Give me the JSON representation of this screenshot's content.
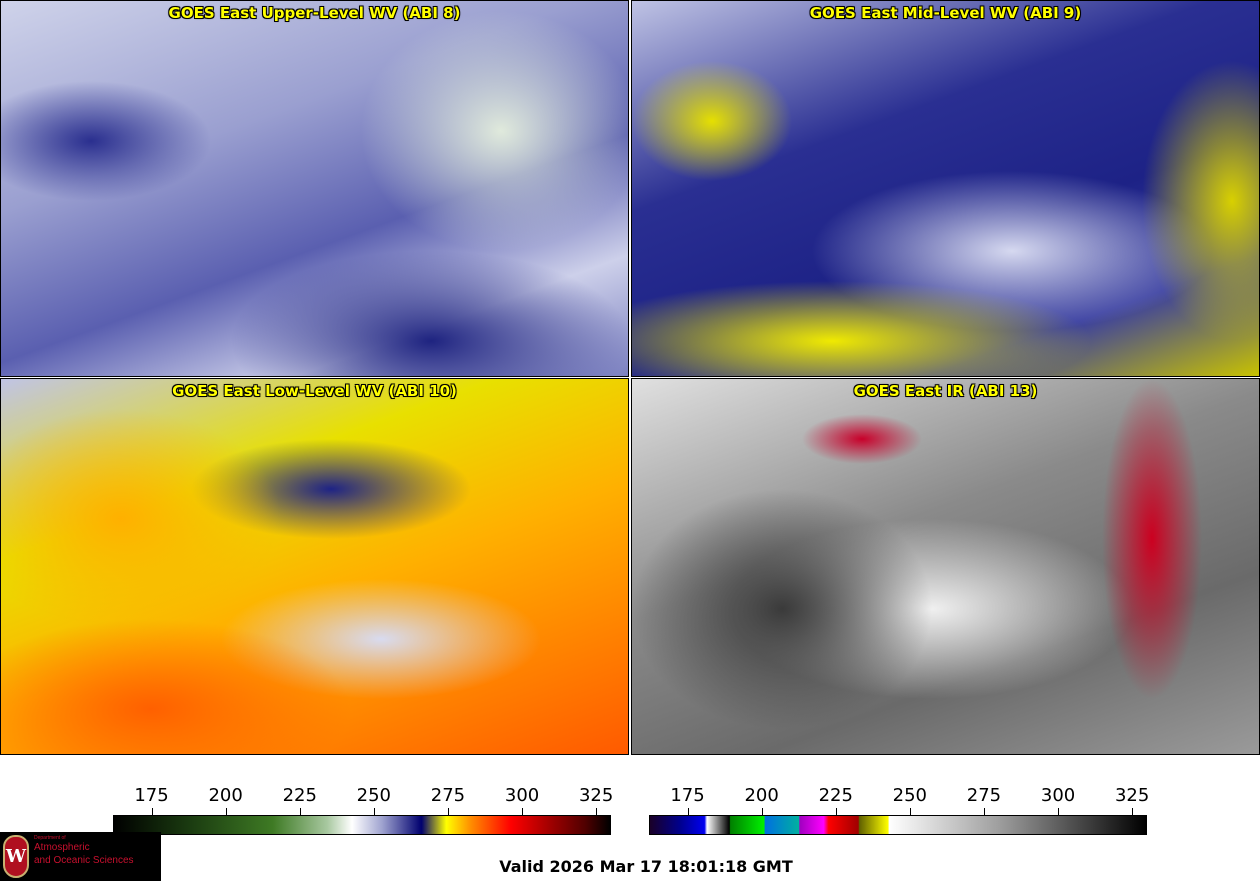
{
  "panels": [
    {
      "title": "GOES East Upper-Level WV (ABI 8)"
    },
    {
      "title": "GOES East Mid-Level WV (ABI 9)"
    },
    {
      "title": "GOES East Low-Level WV (ABI 10)"
    },
    {
      "title": "GOES East IR (ABI 13)"
    }
  ],
  "colorbars": [
    {
      "name": "water-vapor",
      "ticks": [
        "175",
        "200",
        "225",
        "250",
        "275",
        "300",
        "325"
      ],
      "range": [
        162,
        330
      ]
    },
    {
      "name": "infrared",
      "ticks": [
        "175",
        "200",
        "225",
        "250",
        "275",
        "300",
        "325"
      ],
      "range": [
        162,
        330
      ]
    }
  ],
  "logo": {
    "line1": "Department of",
    "line2": "Atmospheric",
    "line3": "and Oceanic Sciences",
    "crest": "W"
  },
  "valid_time": "Valid 2026 Mar 17 18:01:18 GMT"
}
